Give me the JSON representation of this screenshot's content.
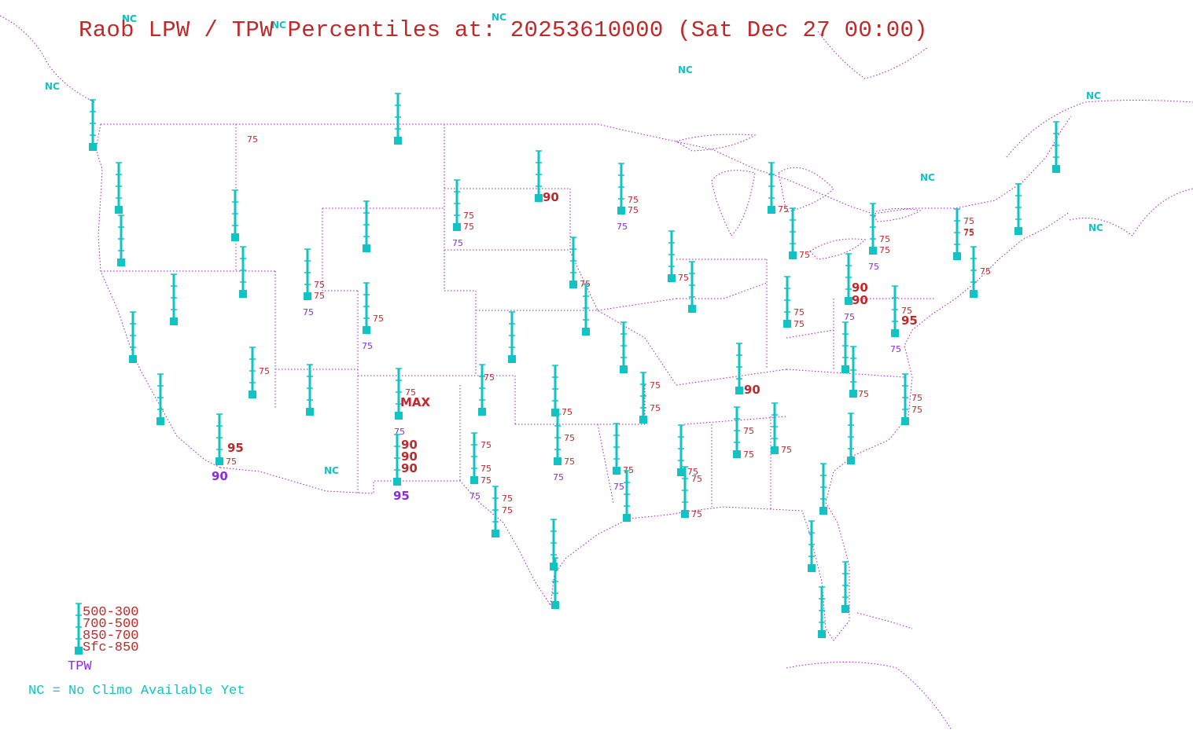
{
  "title": "Raob LPW / TPW Percentiles at: 20253610000 (Sat Dec 27 00:00)",
  "colors": {
    "stick": "#12c3c3",
    "level": "#c0282a",
    "tpw": "#8a2be2",
    "nc": "#12c3c3",
    "border": "#a020c0"
  },
  "legend": {
    "levels": [
      "500-300",
      "700-500",
      "850-700",
      "Sfc-850"
    ],
    "tpw_label": "TPW",
    "nc_note": "NC = No Climo Available Yet"
  },
  "nc_labels": [
    "NC",
    "NC",
    "NC",
    "NC",
    "NC",
    "NC",
    "NC",
    "NC",
    "NC",
    "NC"
  ],
  "stations": [
    {
      "id": "s01",
      "labels": []
    },
    {
      "id": "s02",
      "labels": []
    },
    {
      "id": "s03",
      "labels": []
    },
    {
      "id": "s04",
      "labels": [
        "75"
      ]
    },
    {
      "id": "s05",
      "labels": [
        "90"
      ]
    },
    {
      "id": "s06",
      "labels": []
    },
    {
      "id": "s07",
      "labels": [
        "75",
        "75",
        "75"
      ]
    },
    {
      "id": "s08",
      "labels": []
    },
    {
      "id": "s09",
      "labels": [
        "75",
        "75",
        "75"
      ]
    },
    {
      "id": "s10",
      "labels": []
    },
    {
      "id": "s11",
      "labels": [
        "75",
        "75",
        "75"
      ]
    },
    {
      "id": "s12",
      "labels": []
    },
    {
      "id": "s13",
      "labels": []
    },
    {
      "id": "s14",
      "labels": [
        "75",
        "75"
      ]
    },
    {
      "id": "s15",
      "labels": [
        "75"
      ]
    },
    {
      "id": "s16",
      "labels": []
    },
    {
      "id": "s17",
      "labels": []
    },
    {
      "id": "s18",
      "labels": []
    },
    {
      "id": "s19",
      "labels": [
        "75"
      ]
    },
    {
      "id": "s20",
      "labels": []
    },
    {
      "id": "s21",
      "labels": [
        "75",
        "75"
      ]
    },
    {
      "id": "s22",
      "labels": [
        "75"
      ]
    },
    {
      "id": "s23",
      "labels": [
        "75"
      ]
    },
    {
      "id": "s24",
      "labels": [
        "75",
        "75",
        "75"
      ]
    },
    {
      "id": "s25",
      "labels": [
        "90",
        "90",
        "75"
      ]
    },
    {
      "id": "s26",
      "labels": [
        "75",
        "95",
        "75"
      ]
    },
    {
      "id": "s27",
      "labels": [
        "75"
      ]
    },
    {
      "id": "s28",
      "labels": []
    },
    {
      "id": "s29",
      "labels": []
    },
    {
      "id": "s30",
      "labels": [
        "75",
        "75",
        "75"
      ]
    },
    {
      "id": "s31",
      "labels": [
        "75"
      ]
    },
    {
      "id": "s32",
      "labels": [
        "75",
        "MAX",
        "75"
      ]
    },
    {
      "id": "s33",
      "labels": []
    },
    {
      "id": "s34",
      "labels": [
        "75"
      ]
    },
    {
      "id": "s35",
      "labels": []
    },
    {
      "id": "s36",
      "labels": [
        "75"
      ]
    },
    {
      "id": "s37",
      "labels": [
        "90"
      ]
    },
    {
      "id": "s38",
      "labels": [
        "75",
        "75"
      ]
    },
    {
      "id": "s39",
      "labels": [
        "75"
      ]
    },
    {
      "id": "s40",
      "labels": []
    },
    {
      "id": "s41",
      "labels": [
        "95",
        "75",
        "90"
      ]
    },
    {
      "id": "s42",
      "labels": [
        "90",
        "90",
        "90",
        "95"
      ]
    },
    {
      "id": "s43",
      "labels": [
        "75",
        "75",
        "75",
        "75"
      ]
    },
    {
      "id": "s44",
      "labels": [
        "75",
        "75",
        "75"
      ]
    },
    {
      "id": "s45",
      "labels": [
        "75",
        "75"
      ]
    },
    {
      "id": "s46",
      "labels": [
        "75",
        "75"
      ]
    },
    {
      "id": "s47",
      "labels": [
        "75"
      ]
    },
    {
      "id": "s48",
      "labels": [
        "75",
        "75"
      ]
    },
    {
      "id": "s49",
      "labels": [
        "75"
      ]
    },
    {
      "id": "s50",
      "labels": [
        "75",
        "75"
      ]
    },
    {
      "id": "s51",
      "labels": []
    },
    {
      "id": "s52",
      "labels": [
        "75",
        "75"
      ]
    },
    {
      "id": "s53",
      "labels": []
    },
    {
      "id": "s54",
      "labels": []
    },
    {
      "id": "s55",
      "labels": []
    },
    {
      "id": "s56",
      "labels": []
    },
    {
      "id": "s57",
      "labels": []
    },
    {
      "id": "s58",
      "labels": []
    },
    {
      "id": "s59",
      "labels": []
    }
  ]
}
